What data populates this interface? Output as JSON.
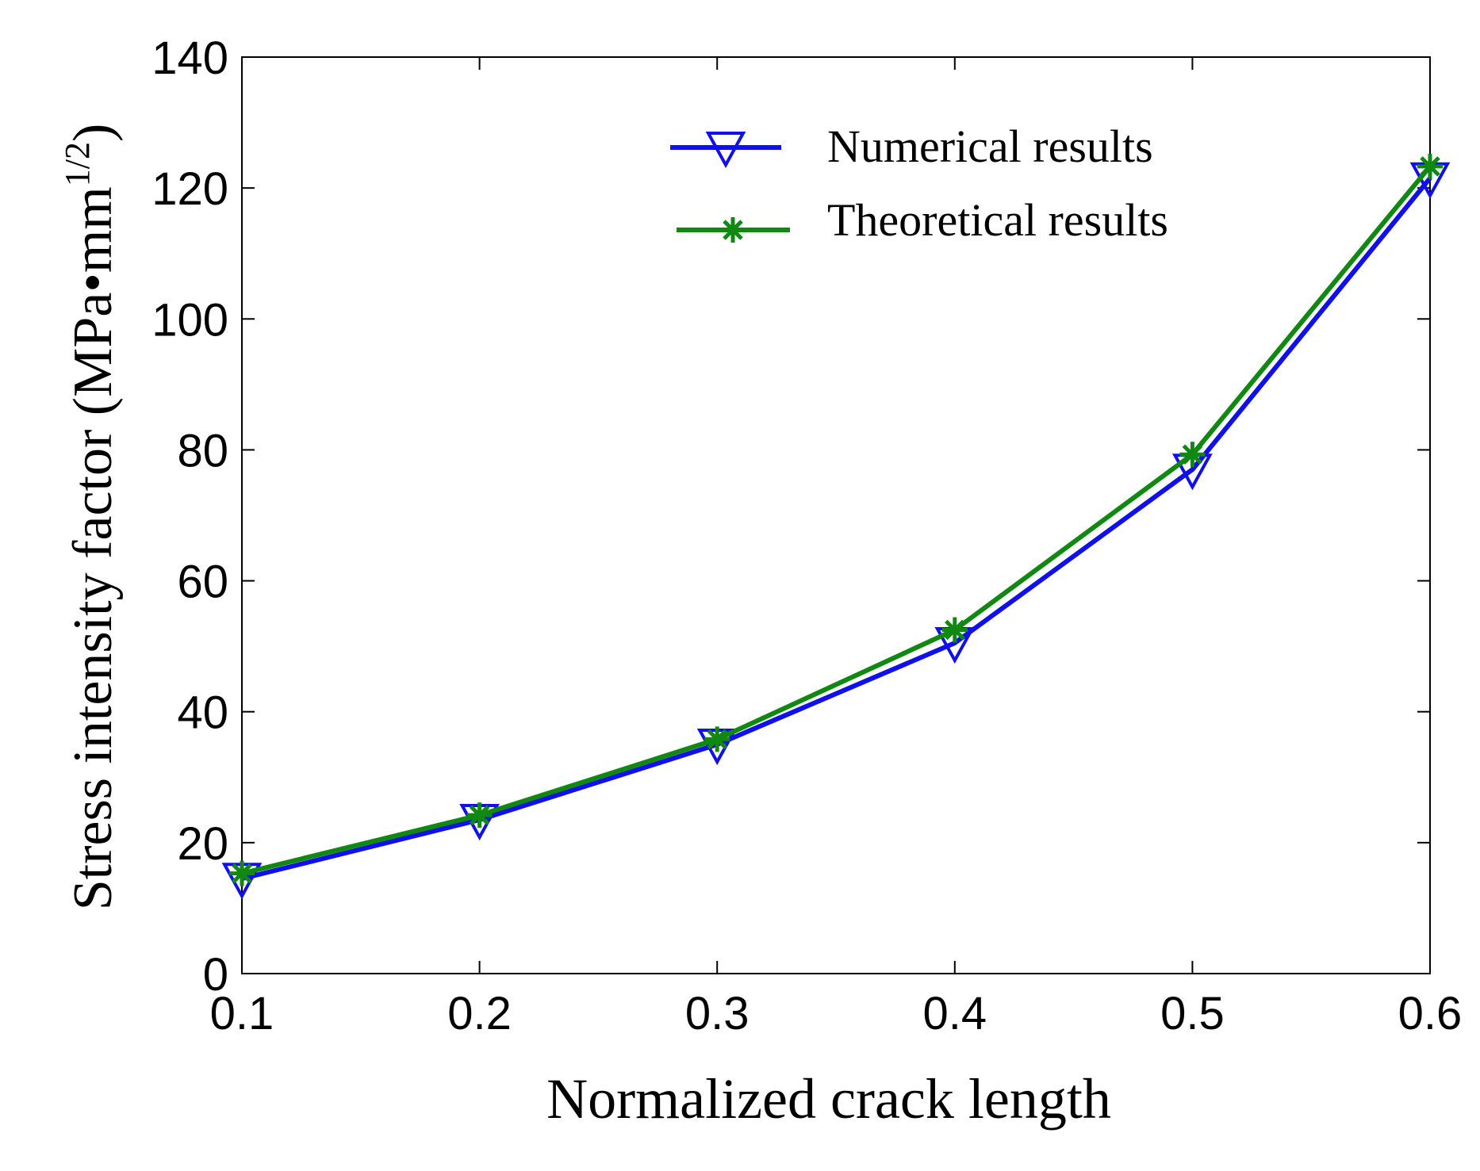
{
  "chart_data": {
    "type": "line",
    "title": "",
    "xlabel": "Normalized crack length",
    "ylabel": {
      "main": "Stress intensity factor (MPa•mm",
      "superscript": "1/2",
      "close": ")"
    },
    "x": [
      0.1,
      0.2,
      0.3,
      0.4,
      0.5,
      0.6
    ],
    "xlim": [
      0.1,
      0.6
    ],
    "ylim": [
      0,
      140
    ],
    "xticks": [
      "0.1",
      "0.2",
      "0.3",
      "0.4",
      "0.5",
      "0.6"
    ],
    "yticks": [
      "0",
      "20",
      "40",
      "60",
      "80",
      "100",
      "120",
      "140"
    ],
    "grid": false,
    "legend_position": "top-right",
    "series": [
      {
        "name": "Numerical results",
        "values": [
          14.5,
          23.5,
          35.0,
          50.5,
          77.0,
          121.5
        ],
        "color": "#1010ee",
        "marker": "down-triangle"
      },
      {
        "name": "Theoretical results",
        "values": [
          15.3,
          24.2,
          35.8,
          52.5,
          79.3,
          123.3
        ],
        "color": "#118811",
        "marker": "asterisk"
      }
    ]
  }
}
